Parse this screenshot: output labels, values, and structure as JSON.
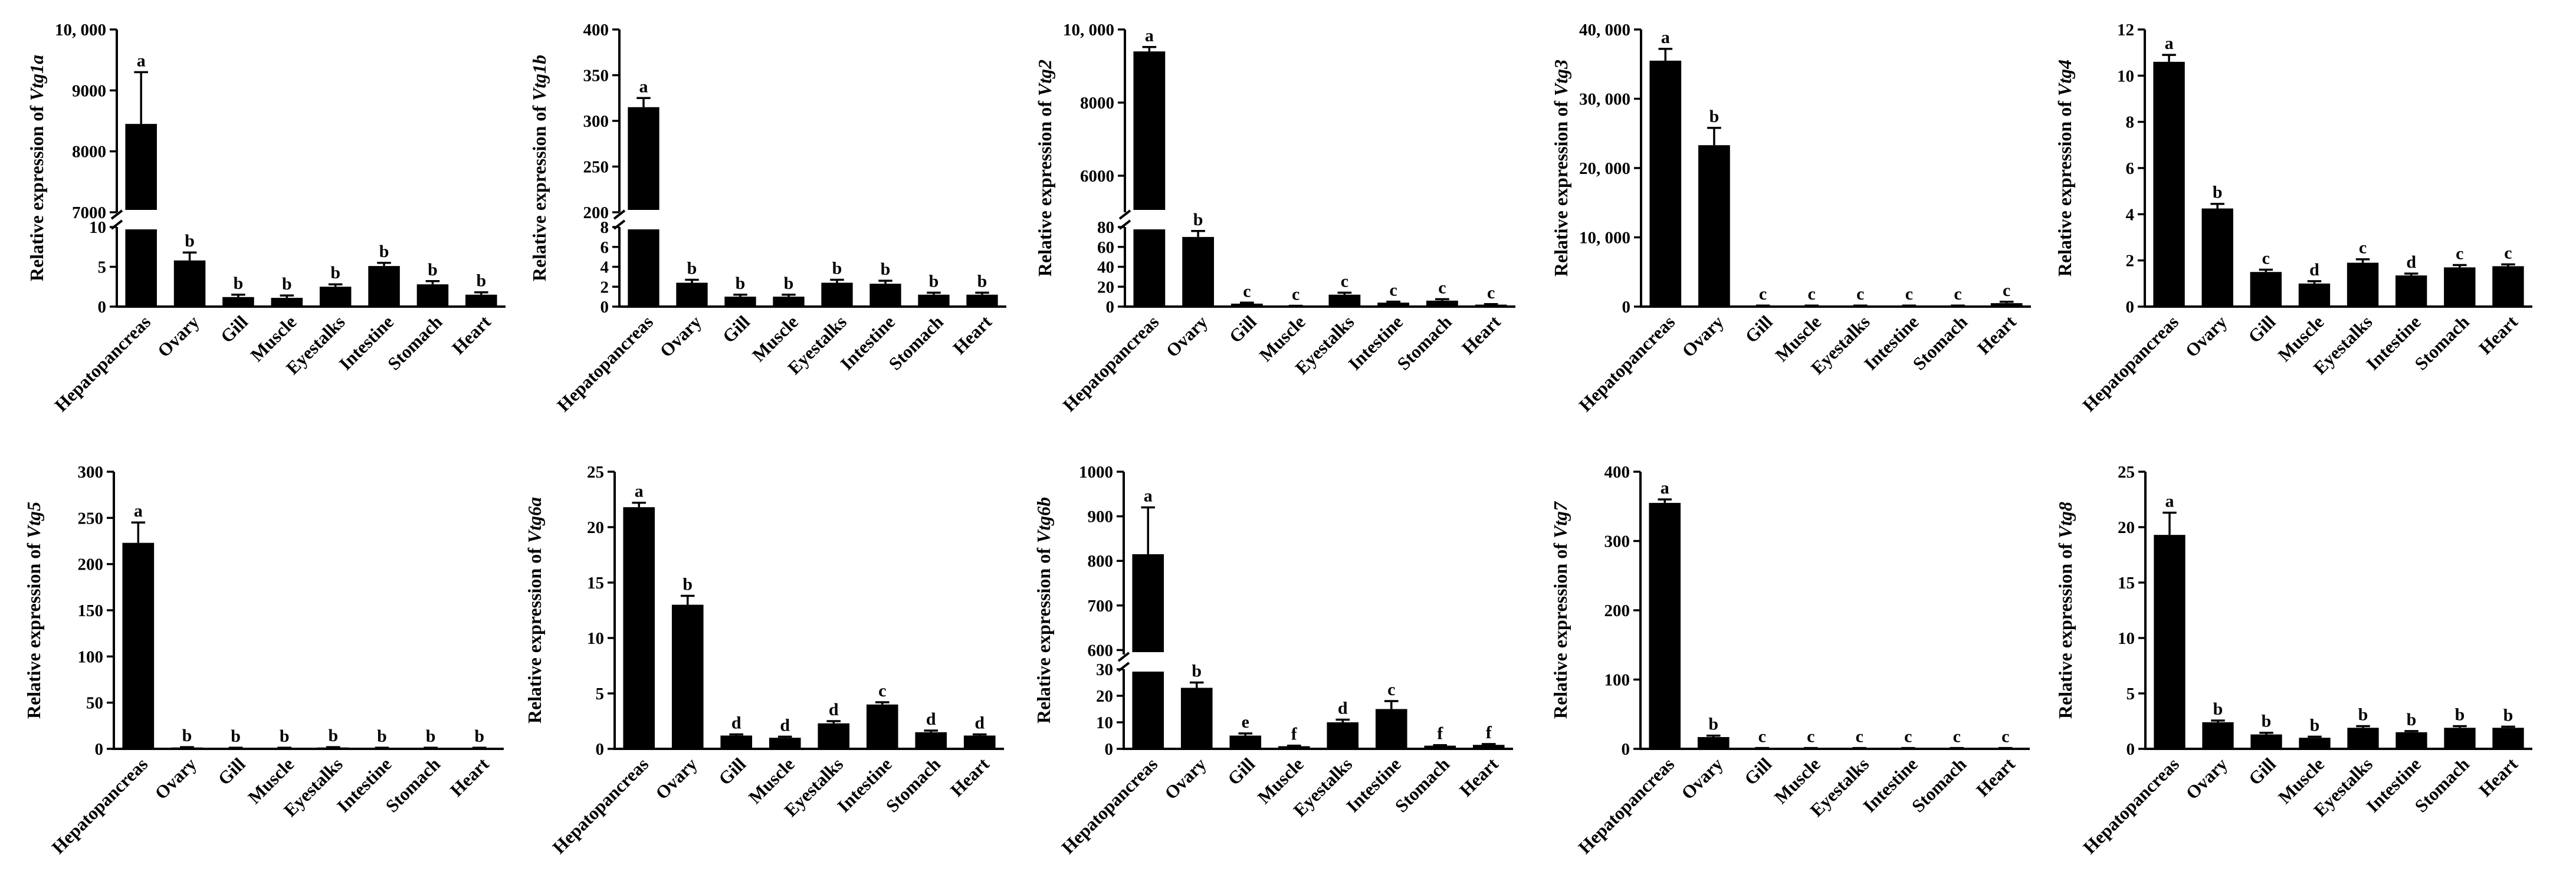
{
  "chart_data": [
    {
      "type": "bar",
      "title": "",
      "gene": "Vtg1a",
      "ylabel_prefix": "Relative expression of ",
      "categories": [
        "Hepatopancreas",
        "Ovary",
        "Gill",
        "Muscle",
        "Eyestalks",
        "Intestine",
        "Stomach",
        "Heart"
      ],
      "values": [
        8450,
        5.8,
        1.2,
        1.1,
        2.5,
        5.1,
        2.8,
        1.5
      ],
      "errors": [
        850,
        1.0,
        0.3,
        0.3,
        0.3,
        0.4,
        0.4,
        0.3
      ],
      "letters": [
        "a",
        "b",
        "b",
        "b",
        "b",
        "b",
        "b",
        "b"
      ],
      "axis_break": {
        "lower": [
          0,
          10
        ],
        "upper": [
          7000,
          10000
        ]
      },
      "lower_ticks": [
        0,
        5,
        10
      ],
      "upper_ticks": [
        7000,
        8000,
        9000,
        10000
      ],
      "lower_tick_labels": [
        "0",
        "5",
        "10"
      ],
      "upper_tick_labels": [
        "7000",
        "8000",
        "9000",
        "10, 000"
      ]
    },
    {
      "type": "bar",
      "title": "",
      "gene": "Vtg1b",
      "ylabel_prefix": "Relative expression of ",
      "categories": [
        "Hepatopancreas",
        "Ovary",
        "Gill",
        "Muscle",
        "Eyestalks",
        "Intestine",
        "Stomach",
        "Heart"
      ],
      "values": [
        315,
        2.4,
        1.0,
        1.0,
        2.4,
        2.3,
        1.2,
        1.2
      ],
      "errors": [
        10,
        0.3,
        0.2,
        0.2,
        0.3,
        0.3,
        0.2,
        0.2
      ],
      "letters": [
        "a",
        "b",
        "b",
        "b",
        "b",
        "b",
        "b",
        "b"
      ],
      "axis_break": {
        "lower": [
          0,
          8
        ],
        "upper": [
          200,
          400
        ]
      },
      "lower_ticks": [
        0,
        2,
        4,
        6,
        8
      ],
      "upper_ticks": [
        200,
        250,
        300,
        350,
        400
      ],
      "lower_tick_labels": [
        "0",
        "2",
        "4",
        "6",
        "8"
      ],
      "upper_tick_labels": [
        "200",
        "250",
        "300",
        "350",
        "400"
      ]
    },
    {
      "type": "bar",
      "title": "",
      "gene": "Vtg2",
      "ylabel_prefix": "Relative expression of ",
      "categories": [
        "Hepatopancreas",
        "Ovary",
        "Gill",
        "Muscle",
        "Eyestalks",
        "Intestine",
        "Stomach",
        "Heart"
      ],
      "values": [
        9400,
        70,
        3,
        0.5,
        12,
        4,
        6,
        2
      ],
      "errors": [
        120,
        6,
        1,
        0.3,
        2,
        1,
        1.5,
        0.5
      ],
      "letters": [
        "a",
        "b",
        "c",
        "c",
        "c",
        "c",
        "c",
        "c"
      ],
      "axis_break": {
        "lower": [
          0,
          80
        ],
        "upper": [
          5000,
          10000
        ]
      },
      "lower_ticks": [
        0,
        20,
        40,
        60,
        80
      ],
      "upper_ticks": [
        6000,
        8000,
        10000
      ],
      "lower_tick_labels": [
        "0",
        "20",
        "40",
        "60",
        "80"
      ],
      "upper_tick_labels": [
        "6000",
        "8000",
        "10, 000"
      ]
    },
    {
      "type": "bar",
      "title": "",
      "gene": "Vtg3",
      "ylabel_prefix": "Relative expression of ",
      "categories": [
        "Hepatopancreas",
        "Ovary",
        "Gill",
        "Muscle",
        "Eyestalks",
        "Intestine",
        "Stomach",
        "Heart"
      ],
      "values": [
        35500,
        23300,
        100,
        100,
        100,
        100,
        100,
        500
      ],
      "errors": [
        1700,
        2500,
        50,
        50,
        50,
        50,
        50,
        200
      ],
      "letters": [
        "a",
        "b",
        "c",
        "c",
        "c",
        "c",
        "c",
        "c"
      ],
      "ylim": [
        0,
        40000
      ],
      "ticks": [
        0,
        10000,
        20000,
        30000,
        40000
      ],
      "tick_labels": [
        "0",
        "10, 000",
        "20, 000",
        "30, 000",
        "40, 000"
      ]
    },
    {
      "type": "bar",
      "title": "",
      "gene": "Vtg4",
      "ylabel_prefix": "Relative expression of ",
      "categories": [
        "Hepatopancreas",
        "Ovary",
        "Gill",
        "Muscle",
        "Eyestalks",
        "Intestine",
        "Stomach",
        "Heart"
      ],
      "values": [
        10.6,
        4.25,
        1.5,
        1.0,
        1.9,
        1.35,
        1.7,
        1.75
      ],
      "errors": [
        0.3,
        0.2,
        0.1,
        0.1,
        0.15,
        0.08,
        0.1,
        0.08
      ],
      "letters": [
        "a",
        "b",
        "c",
        "d",
        "c",
        "d",
        "c",
        "c"
      ],
      "ylim": [
        0,
        12
      ],
      "ticks": [
        0,
        2,
        4,
        6,
        8,
        10,
        12
      ],
      "tick_labels": [
        "0",
        "2",
        "4",
        "6",
        "8",
        "10",
        "12"
      ]
    },
    {
      "type": "bar",
      "title": "",
      "gene": "Vtg5",
      "ylabel_prefix": "Relative expression of ",
      "categories": [
        "Hepatopancreas",
        "Ovary",
        "Gill",
        "Muscle",
        "Eyestalks",
        "Intestine",
        "Stomach",
        "Heart"
      ],
      "values": [
        223,
        1.5,
        1,
        1,
        1.5,
        1,
        1,
        1
      ],
      "errors": [
        22,
        0.3,
        0.2,
        0.2,
        0.3,
        0.2,
        0.2,
        0.2
      ],
      "letters": [
        "a",
        "b",
        "b",
        "b",
        "b",
        "b",
        "b",
        "b"
      ],
      "ylim": [
        0,
        300
      ],
      "ticks": [
        0,
        50,
        100,
        150,
        200,
        250,
        300
      ],
      "tick_labels": [
        "0",
        "50",
        "100",
        "150",
        "200",
        "250",
        "300"
      ]
    },
    {
      "type": "bar",
      "title": "",
      "gene": "Vtg6a",
      "ylabel_prefix": "Relative expression of ",
      "categories": [
        "Hepatopancreas",
        "Ovary",
        "Gill",
        "Muscle",
        "Eyestalks",
        "Intestine",
        "Stomach",
        "Heart"
      ],
      "values": [
        21.8,
        13.0,
        1.2,
        1.0,
        2.3,
        4.0,
        1.5,
        1.2
      ],
      "errors": [
        0.4,
        0.8,
        0.1,
        0.1,
        0.2,
        0.2,
        0.15,
        0.1
      ],
      "letters": [
        "a",
        "b",
        "d",
        "d",
        "d",
        "c",
        "d",
        "d"
      ],
      "ylim": [
        0,
        25
      ],
      "ticks": [
        0,
        5,
        10,
        15,
        20,
        25
      ],
      "tick_labels": [
        "0",
        "5",
        "10",
        "15",
        "20",
        "25"
      ]
    },
    {
      "type": "bar",
      "title": "",
      "gene": "Vtg6b",
      "ylabel_prefix": "Relative expression of ",
      "categories": [
        "Hepatopancreas",
        "Ovary",
        "Gill",
        "Muscle",
        "Eyestalks",
        "Intestine",
        "Stomach",
        "Heart"
      ],
      "values": [
        815,
        23,
        5,
        1,
        10,
        15,
        1.2,
        1.5
      ],
      "errors": [
        105,
        2,
        0.8,
        0.2,
        1,
        3,
        0.2,
        0.3
      ],
      "letters": [
        "a",
        "b",
        "e",
        "f",
        "d",
        "c",
        "f",
        "f"
      ],
      "axis_break": {
        "lower": [
          0,
          30
        ],
        "upper": [
          590,
          1000
        ]
      },
      "lower_ticks": [
        0,
        10,
        20,
        30
      ],
      "upper_ticks": [
        600,
        700,
        800,
        900,
        1000
      ],
      "lower_tick_labels": [
        "0",
        "10",
        "20",
        "30"
      ],
      "upper_tick_labels": [
        "600",
        "700",
        "800",
        "900",
        "1000"
      ]
    },
    {
      "type": "bar",
      "title": "",
      "gene": "Vtg7",
      "ylabel_prefix": "Relative expression of ",
      "categories": [
        "Hepatopancreas",
        "Ovary",
        "Gill",
        "Muscle",
        "Eyestalks",
        "Intestine",
        "Stomach",
        "Heart"
      ],
      "values": [
        355,
        17,
        1,
        1,
        1,
        1,
        1,
        1
      ],
      "errors": [
        5,
        2,
        0.2,
        0.2,
        0.2,
        0.2,
        0.2,
        0.2
      ],
      "letters": [
        "a",
        "b",
        "c",
        "c",
        "c",
        "c",
        "c",
        "c"
      ],
      "ylim": [
        0,
        400
      ],
      "ticks": [
        0,
        100,
        200,
        300,
        400
      ],
      "tick_labels": [
        "0",
        "100",
        "200",
        "300",
        "400"
      ]
    },
    {
      "type": "bar",
      "title": "",
      "gene": "Vtg8",
      "ylabel_prefix": "Relative expression of ",
      "categories": [
        "Hepatopancreas",
        "Ovary",
        "Gill",
        "Muscle",
        "Eyestalks",
        "Intestine",
        "Stomach",
        "Heart"
      ],
      "values": [
        19.3,
        2.4,
        1.3,
        1.0,
        1.9,
        1.5,
        1.9,
        1.9
      ],
      "errors": [
        2.0,
        0.15,
        0.15,
        0.1,
        0.15,
        0.1,
        0.15,
        0.1
      ],
      "letters": [
        "a",
        "b",
        "b",
        "b",
        "b",
        "b",
        "b",
        "b"
      ],
      "ylim": [
        0,
        25
      ],
      "ticks": [
        0,
        5,
        10,
        15,
        20,
        25
      ],
      "tick_labels": [
        "0",
        "5",
        "10",
        "15",
        "20",
        "25"
      ]
    }
  ]
}
